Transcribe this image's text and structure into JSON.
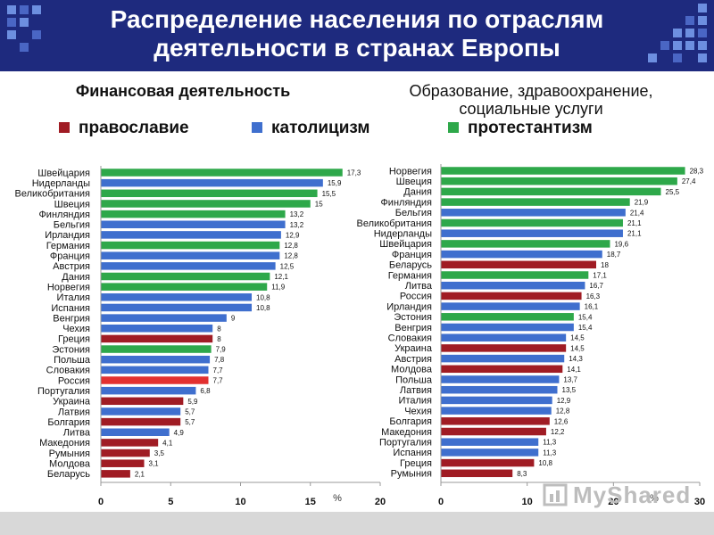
{
  "header": {
    "title_line1": "Распределение населения по отраслям",
    "title_line2": "деятельности в странах Европы"
  },
  "subtitles": {
    "left": "Финансовая деятельность",
    "right_line1": "Образование, здравоохранение,",
    "right_line2": "социальные услуги"
  },
  "legend": [
    {
      "label": "православие",
      "color": "#a01c24"
    },
    {
      "label": "католицизм",
      "color": "#3f6fce"
    },
    {
      "label": "протестантизм",
      "color": "#2ea84a"
    }
  ],
  "watermark": "MyShared",
  "chart_data": [
    {
      "type": "bar",
      "orientation": "horizontal",
      "title": "Финансовая деятельность",
      "xlabel": "%",
      "xlim": [
        0,
        20
      ],
      "xticks": [
        "0",
        "5",
        "10",
        "15",
        "20"
      ],
      "categories": [
        "Швейцария",
        "Нидерланды",
        "Великобритания",
        "Швеция",
        "Финляндия",
        "Бельгия",
        "Ирландия",
        "Германия",
        "Франция",
        "Австрия",
        "Дания",
        "Норвегия",
        "Италия",
        "Испания",
        "Венгрия",
        "Чехия",
        "Греция",
        "Эстония",
        "Польша",
        "Словакия",
        "Россия",
        "Португалия",
        "Украина",
        "Латвия",
        "Болгария",
        "Литва",
        "Македония",
        "Румыния",
        "Молдова",
        "Беларусь"
      ],
      "values": [
        17.3,
        15.9,
        15.5,
        15,
        13.2,
        13.2,
        12.9,
        12.8,
        12.8,
        12.5,
        12.1,
        11.9,
        10.8,
        10.8,
        9,
        8,
        8,
        7.9,
        7.8,
        7.7,
        7.7,
        6.8,
        5.9,
        5.7,
        5.7,
        4.9,
        4.1,
        3.5,
        3.1,
        2.1
      ],
      "value_labels": [
        "17,3",
        "15,9",
        "15,5",
        "15",
        "13,2",
        "13,2",
        "12,9",
        "12,8",
        "12,8",
        "12,5",
        "12,1",
        "11,9",
        "10,8",
        "10,8",
        "9",
        "8",
        "8",
        "7,9",
        "7,8",
        "7,7",
        "7,7",
        "6,8",
        "5,9",
        "5,7",
        "5,7",
        "4,9",
        "4,1",
        "3,5",
        "3,1",
        "2,1"
      ],
      "religion": [
        "protestantism",
        "catholicism",
        "protestantism",
        "protestantism",
        "protestantism",
        "catholicism",
        "catholicism",
        "protestantism",
        "catholicism",
        "catholicism",
        "protestantism",
        "protestantism",
        "catholicism",
        "catholicism",
        "catholicism",
        "catholicism",
        "orthodoxy",
        "protestantism",
        "catholicism",
        "catholicism",
        "russia",
        "catholicism",
        "orthodoxy",
        "catholicism",
        "orthodoxy",
        "catholicism",
        "orthodoxy",
        "orthodoxy",
        "orthodoxy",
        "orthodoxy"
      ]
    },
    {
      "type": "bar",
      "orientation": "horizontal",
      "title": "Образование, здравоохранение, социальные услуги",
      "xlabel": "%",
      "xlim": [
        0,
        30
      ],
      "xticks": [
        "0",
        "10",
        "20",
        "30"
      ],
      "categories": [
        "Норвегия",
        "Швеция",
        "Дания",
        "Финляндия",
        "Бельгия",
        "Великобритания",
        "Нидерланды",
        "Швейцария",
        "Франция",
        "Беларусь",
        "Германия",
        "Литва",
        "Россия",
        "Ирландия",
        "Эстония",
        "Венгрия",
        "Словакия",
        "Украина",
        "Австрия",
        "Молдова",
        "Польша",
        "Латвия",
        "Италия",
        "Чехия",
        "Болгария",
        "Македония",
        "Португалия",
        "Испания",
        "Греция",
        "Румыния"
      ],
      "values": [
        28.3,
        27.4,
        25.5,
        21.9,
        21.4,
        21.1,
        21.1,
        19.6,
        18.7,
        18,
        17.1,
        16.7,
        16.3,
        16.1,
        15.4,
        15.4,
        14.5,
        14.5,
        14.3,
        14.1,
        13.7,
        13.5,
        12.9,
        12.8,
        12.6,
        12.2,
        11.3,
        11.3,
        10.8,
        8.3
      ],
      "value_labels": [
        "28,3",
        "27,4",
        "25,5",
        "21,9",
        "21,4",
        "21,1",
        "21,1",
        "19,6",
        "18,7",
        "18",
        "17,1",
        "16,7",
        "16,3",
        "16,1",
        "15,4",
        "15,4",
        "14,5",
        "14,5",
        "14,3",
        "14,1",
        "13,7",
        "13,5",
        "12,9",
        "12,8",
        "12,6",
        "12,2",
        "11,3",
        "11,3",
        "10,8",
        "8,3"
      ],
      "religion": [
        "protestantism",
        "protestantism",
        "protestantism",
        "protestantism",
        "catholicism",
        "protestantism",
        "catholicism",
        "protestantism",
        "catholicism",
        "orthodoxy",
        "protestantism",
        "catholicism",
        "orthodoxy",
        "catholicism",
        "protestantism",
        "catholicism",
        "catholicism",
        "orthodoxy",
        "catholicism",
        "orthodoxy",
        "catholicism",
        "catholicism",
        "catholicism",
        "catholicism",
        "orthodoxy",
        "orthodoxy",
        "catholicism",
        "catholicism",
        "orthodoxy",
        "orthodoxy"
      ]
    }
  ],
  "colors": {
    "orthodoxy": "#a01c24",
    "catholicism": "#3f6fce",
    "protestantism": "#2ea84a",
    "russia": "#e23030"
  }
}
